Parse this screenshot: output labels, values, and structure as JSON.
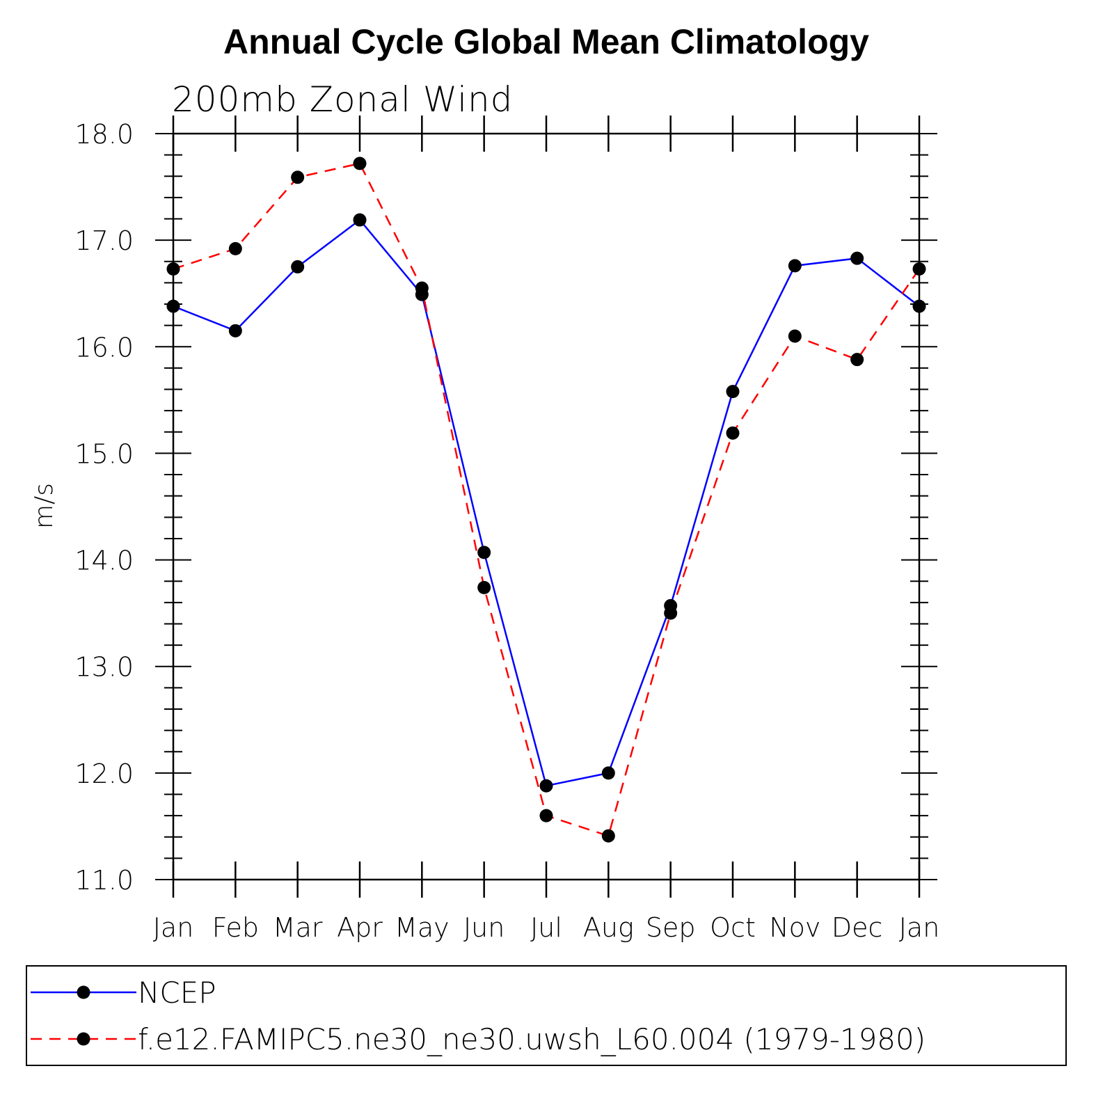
{
  "chart_data": {
    "type": "line",
    "title": "Annual Cycle Global Mean Climatology",
    "subtitle": "200mb Zonal Wind",
    "ylabel": "m/s",
    "ylim": [
      11.0,
      18.0
    ],
    "y_ticks": [
      "11.0",
      "12.0",
      "13.0",
      "14.0",
      "15.0",
      "16.0",
      "17.0",
      "18.0"
    ],
    "categories": [
      "Jan",
      "Feb",
      "Mar",
      "Apr",
      "May",
      "Jun",
      "Jul",
      "Aug",
      "Sep",
      "Oct",
      "Nov",
      "Dec",
      "Jan"
    ],
    "grid": false,
    "legend_position": "bottom",
    "series": [
      {
        "name": "NCEP",
        "color": "#0000ff",
        "dash": "solid",
        "marker": "filled-circle",
        "values": [
          16.38,
          16.15,
          16.75,
          17.19,
          16.49,
          14.07,
          11.88,
          12.0,
          13.57,
          15.58,
          16.76,
          16.83,
          16.38
        ]
      },
      {
        "name": "f.e12.FAMIPC5.ne30_ne30.uwsh_L60.004 (1979-1980)",
        "color": "#ff0000",
        "dash": "dashed",
        "marker": "filled-circle",
        "values": [
          16.73,
          16.92,
          17.59,
          17.72,
          16.55,
          13.74,
          11.6,
          11.41,
          13.5,
          15.19,
          16.1,
          15.88,
          16.73
        ]
      }
    ]
  }
}
